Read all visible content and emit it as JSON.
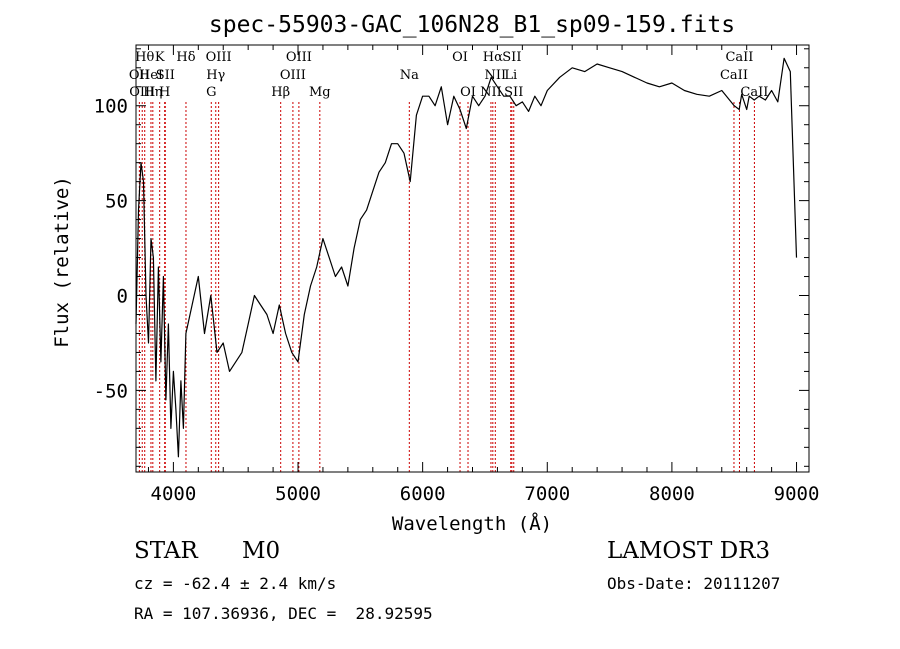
{
  "chart_data": {
    "type": "line",
    "title": "spec-55903-GAC_106N28_B1_sp09-159.fits",
    "xlabel": "Wavelength (Å)",
    "ylabel": "Flux (relative)",
    "xlim": [
      3700,
      9100
    ],
    "ylim": [
      -93,
      132
    ],
    "x_ticks": [
      4000,
      5000,
      6000,
      7000,
      8000,
      9000
    ],
    "y_ticks": [
      -50,
      0,
      50,
      100
    ],
    "grid": false,
    "series": [
      {
        "x": [
          3700,
          3720,
          3740,
          3760,
          3780,
          3800,
          3820,
          3840,
          3860,
          3880,
          3900,
          3920,
          3940,
          3960,
          3980,
          4000,
          4020,
          4040,
          4060,
          4080,
          4100,
          4150,
          4200,
          4250,
          4300,
          4350,
          4400,
          4450,
          4500,
          4550,
          4600,
          4650,
          4700,
          4750,
          4800,
          4850,
          4900,
          4950,
          5000,
          5050,
          5100,
          5150,
          5200,
          5250,
          5300,
          5350,
          5400,
          5450,
          5500,
          5550,
          5600,
          5650,
          5700,
          5750,
          5800,
          5850,
          5900,
          5950,
          6000,
          6050,
          6100,
          6150,
          6200,
          6250,
          6300,
          6350,
          6400,
          6450,
          6500,
          6550,
          6600,
          6650,
          6700,
          6750,
          6800,
          6850,
          6900,
          6950,
          7000,
          7100,
          7200,
          7300,
          7400,
          7500,
          7600,
          7700,
          7800,
          7900,
          8000,
          8100,
          8200,
          8300,
          8400,
          8500,
          8540,
          8560,
          8600,
          8620,
          8660,
          8700,
          8750,
          8800,
          8850,
          8900,
          8950,
          9000
        ],
        "y": [
          -15,
          45,
          70,
          60,
          0,
          -25,
          30,
          20,
          -45,
          15,
          -35,
          10,
          -55,
          -15,
          -70,
          -40,
          -60,
          -85,
          -45,
          -70,
          -20,
          -5,
          10,
          -20,
          0,
          -30,
          -25,
          -40,
          -35,
          -30,
          -15,
          0,
          -5,
          -10,
          -20,
          -5,
          -20,
          -30,
          -35,
          -10,
          5,
          15,
          30,
          20,
          10,
          15,
          5,
          25,
          40,
          45,
          55,
          65,
          70,
          80,
          80,
          75,
          60,
          95,
          105,
          105,
          100,
          110,
          90,
          105,
          98,
          88,
          105,
          100,
          105,
          115,
          110,
          105,
          105,
          100,
          102,
          97,
          105,
          100,
          108,
          115,
          120,
          118,
          122,
          120,
          118,
          115,
          112,
          110,
          112,
          108,
          106,
          105,
          108,
          100,
          98,
          106,
          98,
          105,
          103,
          105,
          103,
          108,
          102,
          125,
          118,
          20
        ]
      }
    ],
    "spectral_lines": [
      {
        "x": 3727,
        "label": "OII",
        "row": 1
      },
      {
        "x": 3750,
        "label": "OIII",
        "row": 2
      },
      {
        "x": 3770,
        "label": "Hθ",
        "row": 0
      },
      {
        "x": 3820,
        "label": "HeI",
        "row": 1
      },
      {
        "x": 3835,
        "label": "Hη",
        "row": 2
      },
      {
        "x": 3890,
        "label": "K",
        "row": 0
      },
      {
        "x": 3930,
        "label": "H",
        "row": 2
      },
      {
        "x": 3935,
        "label": "SII",
        "row": 1
      },
      {
        "x": 4101,
        "label": "Hδ",
        "row": 0
      },
      {
        "x": 4304,
        "label": "G",
        "row": 2
      },
      {
        "x": 4340,
        "label": "Hγ",
        "row": 1
      },
      {
        "x": 4363,
        "label": "OIII",
        "row": 0
      },
      {
        "x": 4861,
        "label": "Hβ",
        "row": 2
      },
      {
        "x": 4959,
        "label": "OIII",
        "row": 1
      },
      {
        "x": 5007,
        "label": "OIII",
        "row": 0
      },
      {
        "x": 5175,
        "label": "Mg",
        "row": 2
      },
      {
        "x": 5893,
        "label": "Na",
        "row": 1
      },
      {
        "x": 6300,
        "label": "OI",
        "row": 0
      },
      {
        "x": 6364,
        "label": "OI",
        "row": 2
      },
      {
        "x": 6548,
        "label": "NII",
        "row": 2
      },
      {
        "x": 6563,
        "label": "Hα",
        "row": 0
      },
      {
        "x": 6583,
        "label": "NII",
        "row": 1
      },
      {
        "x": 6707,
        "label": "Li",
        "row": 1
      },
      {
        "x": 6716,
        "label": "SII",
        "row": 0
      },
      {
        "x": 6731,
        "label": "SII",
        "row": 2
      },
      {
        "x": 8498,
        "label": "CaII",
        "row": 1
      },
      {
        "x": 8542,
        "label": "CaII",
        "row": 0
      },
      {
        "x": 8662,
        "label": "CaII",
        "row": 2
      }
    ],
    "line_color": "#000000",
    "marker_color": "#cc0000"
  },
  "info": {
    "class": "STAR",
    "subclass": "M0",
    "survey": "LAMOST DR3",
    "cz": "cz = -62.4 ± 2.4 km/s",
    "obs_date": "Obs-Date: 20111207",
    "coords": "RA = 107.36936, DEC =  28.92595"
  }
}
